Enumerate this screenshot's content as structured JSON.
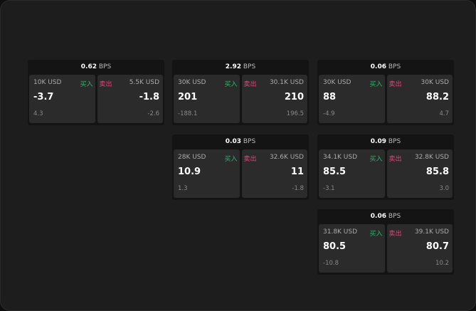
{
  "unit": "BPS",
  "buy_label": "买入",
  "sell_label": "卖出",
  "colors": {
    "buy": "#2fb36b",
    "sell": "#e0457b"
  },
  "cards": [
    {
      "spread": "0.62",
      "buy": {
        "size": "10K USD",
        "price": "-3.7",
        "change": "4.3"
      },
      "sell": {
        "size": "5.5K USD",
        "price": "-1.8",
        "change": "-2.6"
      }
    },
    {
      "spread": "2.92",
      "buy": {
        "size": "30K USD",
        "price": "201",
        "change": "-188.1"
      },
      "sell": {
        "size": "30.1K USD",
        "price": "210",
        "change": "196.5"
      }
    },
    {
      "spread": "0.06",
      "buy": {
        "size": "30K USD",
        "price": "88",
        "change": "-4.9"
      },
      "sell": {
        "size": "30K USD",
        "price": "88.2",
        "change": "4.7"
      }
    },
    {
      "spread": "0.03",
      "buy": {
        "size": "28K USD",
        "price": "10.9",
        "change": "1.3"
      },
      "sell": {
        "size": "32.6K USD",
        "price": "11",
        "change": "-1.8"
      }
    },
    {
      "spread": "0.09",
      "buy": {
        "size": "34.1K USD",
        "price": "85.5",
        "change": "-3.1"
      },
      "sell": {
        "size": "32.8K USD",
        "price": "85.8",
        "change": "3.0"
      }
    },
    {
      "spread": "0.06",
      "buy": {
        "size": "31.8K USD",
        "price": "80.5",
        "change": "-10.8"
      },
      "sell": {
        "size": "39.1K USD",
        "price": "80.7",
        "change": "10.2"
      }
    }
  ]
}
